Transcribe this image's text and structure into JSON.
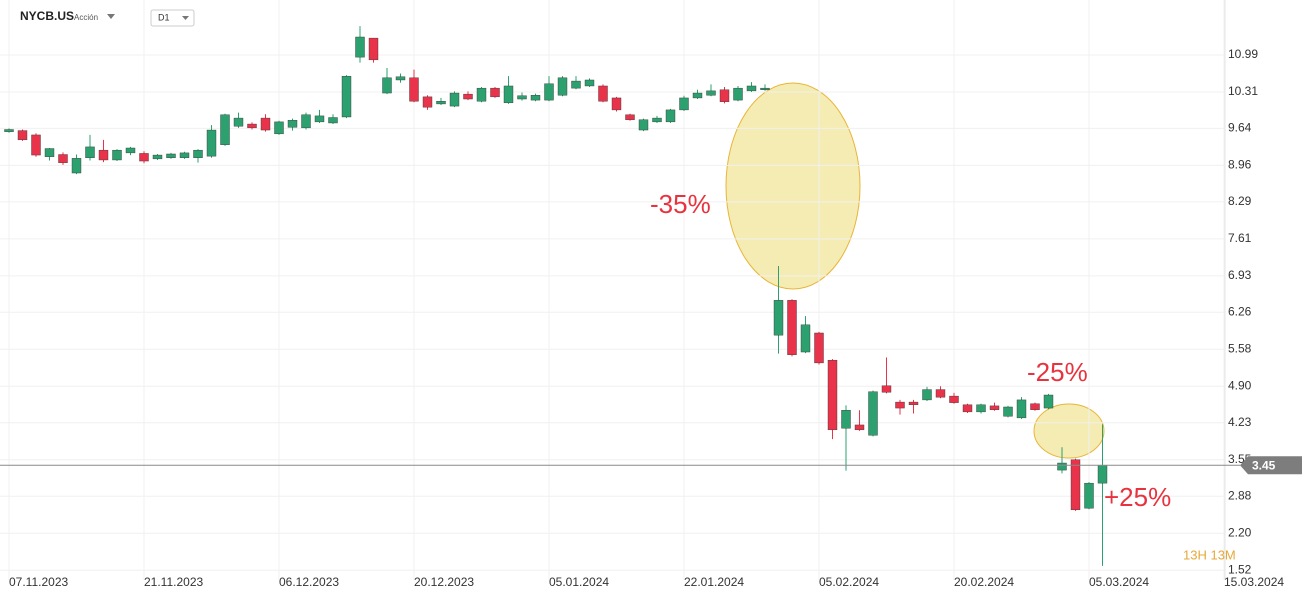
{
  "header": {
    "symbol": "NYCB.US",
    "kind": "Acción",
    "interval": "D1"
  },
  "chart_data": {
    "type": "candlestick",
    "categories": [
      "07.11.2023",
      null,
      null,
      null,
      null,
      null,
      null,
      null,
      null,
      null,
      "21.11.2023",
      null,
      null,
      null,
      null,
      null,
      null,
      null,
      null,
      null,
      "06.12.2023",
      null,
      null,
      null,
      null,
      null,
      null,
      null,
      null,
      null,
      "20.12.2023",
      null,
      null,
      null,
      null,
      null,
      null,
      null,
      null,
      null,
      "05.01.2024",
      null,
      null,
      null,
      null,
      null,
      null,
      null,
      null,
      null,
      "22.01.2024",
      null,
      null,
      null,
      null,
      null,
      null,
      null,
      null,
      null,
      "05.02.2024",
      null,
      null,
      null,
      null,
      null,
      null,
      null,
      null,
      null,
      "20.02.2024",
      null,
      null,
      null,
      null,
      null,
      null,
      null,
      null,
      null,
      "05.03.2024",
      null,
      null,
      null,
      null,
      null,
      null,
      null,
      null,
      null,
      "15.03.2024"
    ],
    "open": [
      9.58,
      9.6,
      9.52,
      9.12,
      9.16,
      8.82,
      9.1,
      9.24,
      9.06,
      9.19,
      9.18,
      9.08,
      9.1,
      9.1,
      9.1,
      9.13,
      9.34,
      9.68,
      9.72,
      9.83,
      9.54,
      9.66,
      9.65,
      9.76,
      9.74,
      9.85,
      10.95,
      11.3,
      10.29,
      10.53,
      10.57,
      10.22,
      10.09,
      10.05,
      10.27,
      10.14,
      10.38,
      10.11,
      10.18,
      10.16,
      10.16,
      10.25,
      10.38,
      10.42,
      10.42,
      10.2,
      9.89,
      9.61,
      9.76,
      9.76,
      9.98,
      10.2,
      10.25,
      10.35,
      10.16,
      10.33,
      10.35,
      5.84,
      6.48,
      5.53,
      5.88,
      5.38,
      4.13,
      4.19,
      4.0,
      4.91,
      4.61,
      4.61,
      4.65,
      4.84,
      4.72,
      4.56,
      4.43,
      4.54,
      4.35,
      4.32,
      4.58,
      4.5,
      3.36,
      3.55,
      2.66,
      3.12,
      null,
      null,
      null,
      null,
      null,
      null,
      null,
      null,
      null
    ],
    "high": [
      9.64,
      9.62,
      9.55,
      9.28,
      9.2,
      9.16,
      9.52,
      9.43,
      9.26,
      9.3,
      9.22,
      9.17,
      9.19,
      9.21,
      9.26,
      9.7,
      9.91,
      9.93,
      9.75,
      9.9,
      9.78,
      9.82,
      9.93,
      9.98,
      9.9,
      10.62,
      11.52,
      11.3,
      10.75,
      10.65,
      10.72,
      10.25,
      10.2,
      10.32,
      10.32,
      10.4,
      10.4,
      10.6,
      10.3,
      10.28,
      10.6,
      10.6,
      10.6,
      10.56,
      10.45,
      10.22,
      9.91,
      9.82,
      9.87,
      10.0,
      10.24,
      10.35,
      10.45,
      10.4,
      10.42,
      10.49,
      10.45,
      7.11,
      6.5,
      6.19,
      5.9,
      5.4,
      4.55,
      4.46,
      4.82,
      5.43,
      4.65,
      4.65,
      4.89,
      4.9,
      4.78,
      4.58,
      4.58,
      4.6,
      4.54,
      4.7,
      4.6,
      4.76,
      3.78,
      3.57,
      3.14,
      4.2,
      null,
      null,
      null,
      null,
      null,
      null,
      null,
      null,
      null
    ],
    "low": [
      9.56,
      9.41,
      9.12,
      9.05,
      8.97,
      8.8,
      9.05,
      9.02,
      9.04,
      9.15,
      9.0,
      9.06,
      9.08,
      9.08,
      9.01,
      9.1,
      9.32,
      9.65,
      9.62,
      9.58,
      9.52,
      9.6,
      9.62,
      9.74,
      9.72,
      9.83,
      10.85,
      10.85,
      10.27,
      10.48,
      10.12,
      9.98,
      10.07,
      10.03,
      10.16,
      10.12,
      10.2,
      10.09,
      10.15,
      10.14,
      10.14,
      10.23,
      10.36,
      10.4,
      10.12,
      9.95,
      9.78,
      9.59,
      9.74,
      9.74,
      9.96,
      10.18,
      10.23,
      10.1,
      10.14,
      10.31,
      10.33,
      5.5,
      5.45,
      5.51,
      5.3,
      3.93,
      3.35,
      4.08,
      3.98,
      4.77,
      4.38,
      4.4,
      4.63,
      4.68,
      4.58,
      4.41,
      4.4,
      4.45,
      4.33,
      4.3,
      4.45,
      4.48,
      3.3,
      2.61,
      2.64,
      1.6,
      null,
      null,
      null,
      null,
      null,
      null,
      null,
      null,
      null
    ],
    "close": [
      9.62,
      9.43,
      9.15,
      9.27,
      9.01,
      9.09,
      9.3,
      9.06,
      9.24,
      9.28,
      9.04,
      9.15,
      9.17,
      9.19,
      9.24,
      9.61,
      9.89,
      9.83,
      9.65,
      9.61,
      9.76,
      9.79,
      9.89,
      9.87,
      9.84,
      10.6,
      11.32,
      10.9,
      10.57,
      10.59,
      10.14,
      10.03,
      10.14,
      10.29,
      10.18,
      10.38,
      10.22,
      10.42,
      10.24,
      10.25,
      10.46,
      10.57,
      10.51,
      10.53,
      10.14,
      9.98,
      9.8,
      9.8,
      9.83,
      9.98,
      10.2,
      10.29,
      10.33,
      10.13,
      10.38,
      10.42,
      10.38,
      6.48,
      5.48,
      6.03,
      5.33,
      4.1,
      4.46,
      4.1,
      4.8,
      4.79,
      4.5,
      4.56,
      4.84,
      4.7,
      4.6,
      4.43,
      4.56,
      4.47,
      4.52,
      4.65,
      4.47,
      4.74,
      3.49,
      2.63,
      3.12,
      3.45,
      null,
      null,
      null,
      null,
      null,
      null,
      null,
      null,
      null
    ],
    "up_color": "#2da06f",
    "down_color": "#e8334a",
    "ylim": [
      1.34,
      12.0
    ],
    "yticks": [
      {
        "value": 1.52,
        "label": "1.52"
      },
      {
        "value": 2.2,
        "label": "2.20"
      },
      2.88,
      3.55,
      4.23,
      {
        "value": 4.9,
        "label": "4.90"
      },
      5.58,
      6.26,
      6.93,
      7.61,
      8.29,
      8.96,
      9.64,
      10.31,
      10.99
    ],
    "last_price": 3.45,
    "grid": true,
    "annotations": [
      "-35%",
      "-25%",
      "+25%"
    ],
    "timer": "13H 13M"
  }
}
